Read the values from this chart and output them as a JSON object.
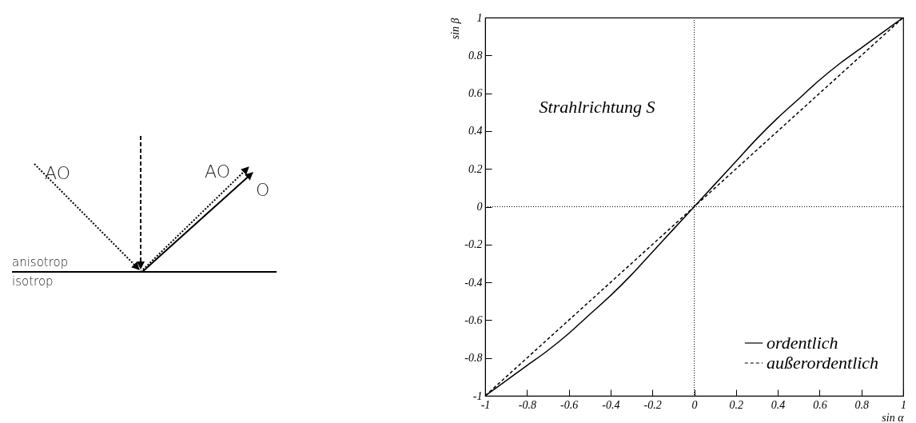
{
  "chart_data": [
    {
      "type": "other",
      "annotations": [
        "AO",
        "AO",
        "O",
        "anisotrop",
        "isotrop"
      ]
    },
    {
      "type": "line",
      "xlabel": "sin α",
      "ylabel": "sin β",
      "annotations": [
        "Strahlrichtung S"
      ],
      "xlim": [
        -1,
        1
      ],
      "ylim": [
        -1,
        1
      ],
      "xticks": [
        -1,
        -0.8,
        -0.6,
        -0.4,
        -0.2,
        0,
        0.2,
        0.4,
        0.6,
        0.8,
        1
      ],
      "yticks": [
        -1,
        -0.8,
        -0.6,
        -0.4,
        -0.2,
        0,
        0.2,
        0.4,
        0.6,
        0.8,
        1
      ],
      "legend": "bottom right",
      "ref_lines": [
        {
          "axis": "x",
          "value": 0,
          "line_style": "dotted"
        },
        {
          "axis": "y",
          "value": 0,
          "line_style": "dotted"
        }
      ],
      "x": [
        -1,
        -0.9,
        -0.8,
        -0.7,
        -0.6,
        -0.5,
        -0.4,
        -0.3,
        -0.2,
        -0.1,
        0,
        0.1,
        0.2,
        0.3,
        0.4,
        0.5,
        0.6,
        0.7,
        0.8,
        0.9,
        1
      ],
      "series": [
        {
          "name": "ordentlich",
          "color": "#000000",
          "line_style": "solid",
          "values": [
            -1,
            -0.92,
            -0.84,
            -0.76,
            -0.67,
            -0.57,
            -0.47,
            -0.36,
            -0.24,
            -0.12,
            0,
            0.12,
            0.24,
            0.36,
            0.47,
            0.57,
            0.67,
            0.76,
            0.84,
            0.92,
            1
          ]
        },
        {
          "name": "außerordentlich",
          "color": "#000000",
          "line_style": "dashed",
          "values": [
            -1,
            -0.9,
            -0.8,
            -0.7,
            -0.6,
            -0.5,
            -0.4,
            -0.3,
            -0.2,
            -0.1,
            0,
            0.1,
            0.2,
            0.3,
            0.4,
            0.5,
            0.6,
            0.7,
            0.8,
            0.9,
            1
          ]
        }
      ]
    }
  ]
}
